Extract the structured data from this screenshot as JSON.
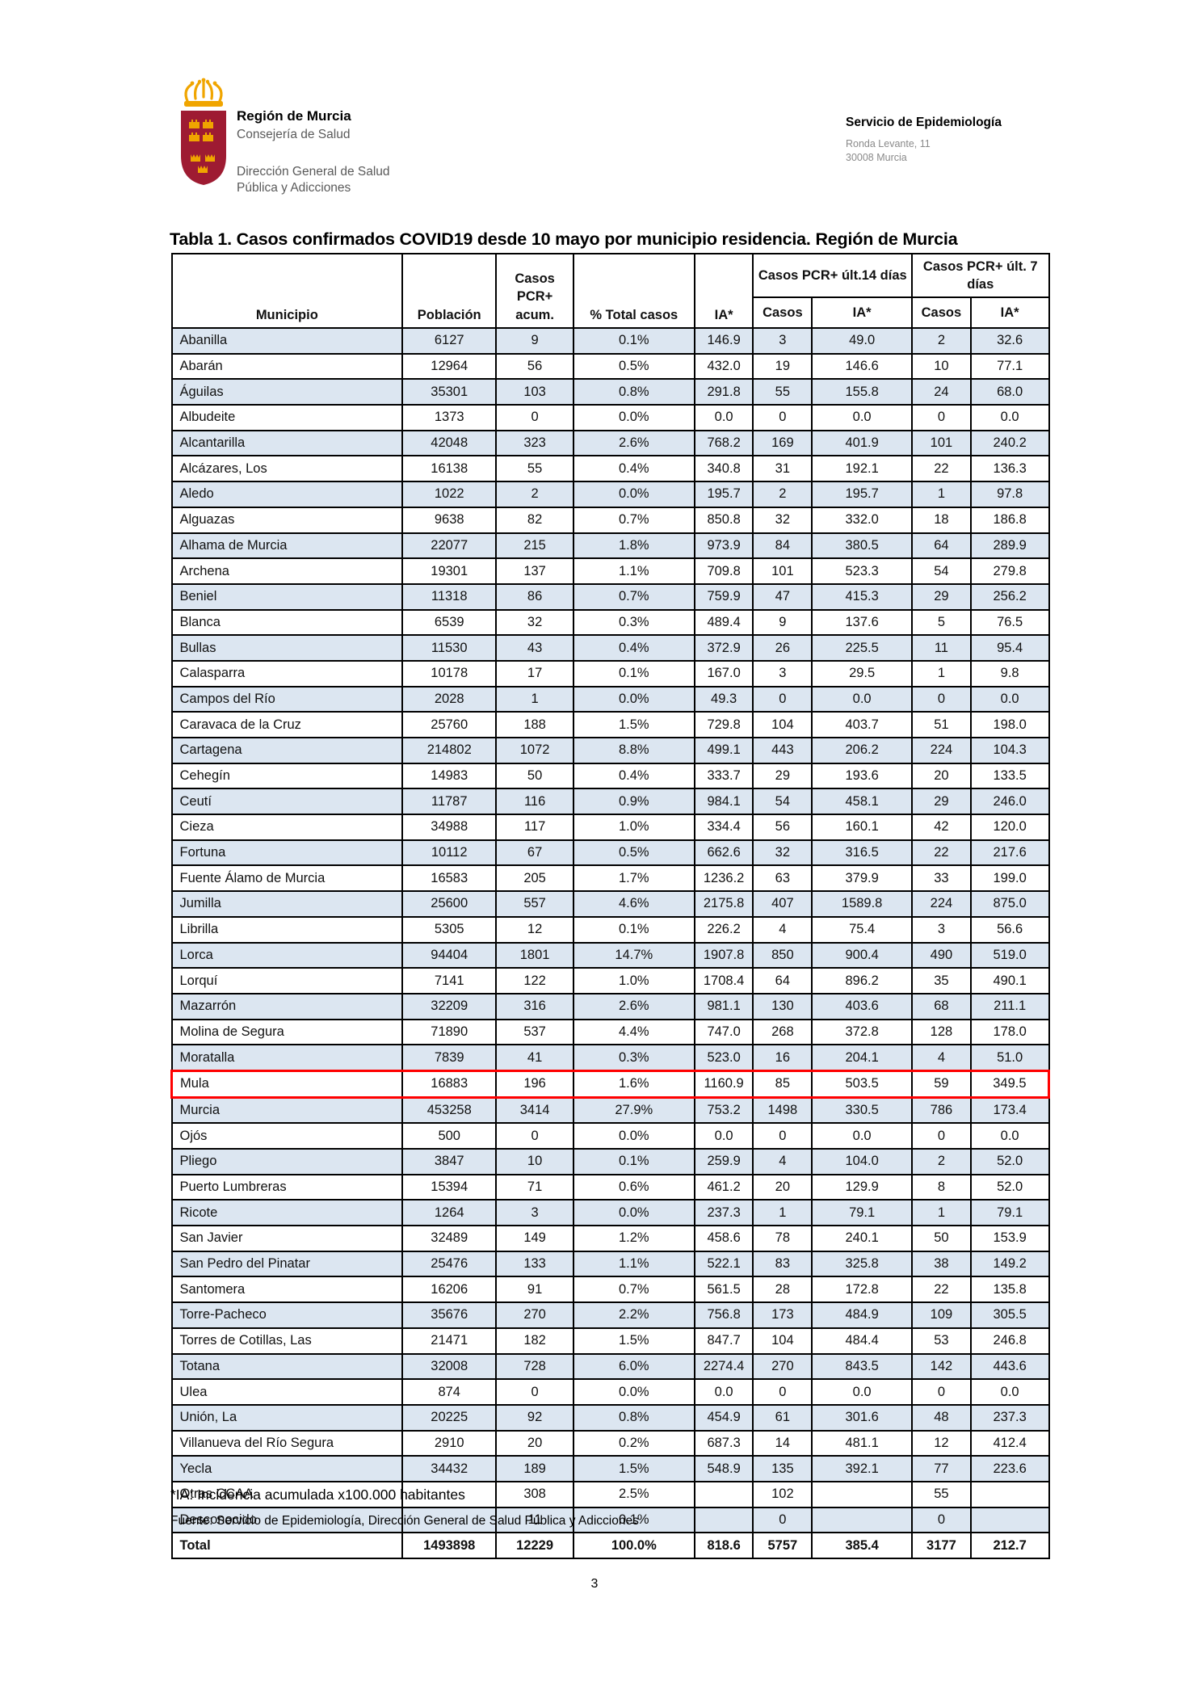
{
  "letterhead": {
    "logo_name": "region-de-murcia-coat-of-arms",
    "org_name": "Región de Murcia",
    "org_dept": "Consejería de Salud",
    "org_division_line1": "Dirección General de Salud",
    "org_division_line2": "Pública y Adicciones",
    "service": {
      "title": "Servicio de Epidemiología",
      "address_line1": "Ronda Levante, 11",
      "address_line2": "30008 Murcia"
    }
  },
  "table": {
    "title": "Tabla 1. Casos confirmados COVID19 desde 10 mayo por municipio residencia. Región de Murcia",
    "headers": {
      "municipio": "Municipio",
      "poblacion": "Población",
      "casos_pcr_acum": "Casos PCR+ acum.",
      "pct_total_casos": "% Total casos",
      "ia": "IA*",
      "group_ult14": "Casos PCR+ últ.14 días",
      "group_ult7": "Casos PCR+ últ. 7 días",
      "sub_casos_14": "Casos",
      "sub_ia_14": "IA*",
      "sub_casos_7": "Casos",
      "sub_ia_7": "IA*"
    },
    "stripe_color": "#DCE6F1",
    "highlight_border_color": "#FF0000",
    "highlighted_municipio": "Mula",
    "total_label": "Total",
    "rows": [
      [
        "Abanilla",
        "6127",
        "9",
        "0.1%",
        "146.9",
        "3",
        "49.0",
        "2",
        "32.6"
      ],
      [
        "Abarán",
        "12964",
        "56",
        "0.5%",
        "432.0",
        "19",
        "146.6",
        "10",
        "77.1"
      ],
      [
        "Águilas",
        "35301",
        "103",
        "0.8%",
        "291.8",
        "55",
        "155.8",
        "24",
        "68.0"
      ],
      [
        "Albudeite",
        "1373",
        "0",
        "0.0%",
        "0.0",
        "0",
        "0.0",
        "0",
        "0.0"
      ],
      [
        "Alcantarilla",
        "42048",
        "323",
        "2.6%",
        "768.2",
        "169",
        "401.9",
        "101",
        "240.2"
      ],
      [
        "Alcázares, Los",
        "16138",
        "55",
        "0.4%",
        "340.8",
        "31",
        "192.1",
        "22",
        "136.3"
      ],
      [
        "Aledo",
        "1022",
        "2",
        "0.0%",
        "195.7",
        "2",
        "195.7",
        "1",
        "97.8"
      ],
      [
        "Alguazas",
        "9638",
        "82",
        "0.7%",
        "850.8",
        "32",
        "332.0",
        "18",
        "186.8"
      ],
      [
        "Alhama de Murcia",
        "22077",
        "215",
        "1.8%",
        "973.9",
        "84",
        "380.5",
        "64",
        "289.9"
      ],
      [
        "Archena",
        "19301",
        "137",
        "1.1%",
        "709.8",
        "101",
        "523.3",
        "54",
        "279.8"
      ],
      [
        "Beniel",
        "11318",
        "86",
        "0.7%",
        "759.9",
        "47",
        "415.3",
        "29",
        "256.2"
      ],
      [
        "Blanca",
        "6539",
        "32",
        "0.3%",
        "489.4",
        "9",
        "137.6",
        "5",
        "76.5"
      ],
      [
        "Bullas",
        "11530",
        "43",
        "0.4%",
        "372.9",
        "26",
        "225.5",
        "11",
        "95.4"
      ],
      [
        "Calasparra",
        "10178",
        "17",
        "0.1%",
        "167.0",
        "3",
        "29.5",
        "1",
        "9.8"
      ],
      [
        "Campos del Río",
        "2028",
        "1",
        "0.0%",
        "49.3",
        "0",
        "0.0",
        "0",
        "0.0"
      ],
      [
        "Caravaca de la Cruz",
        "25760",
        "188",
        "1.5%",
        "729.8",
        "104",
        "403.7",
        "51",
        "198.0"
      ],
      [
        "Cartagena",
        "214802",
        "1072",
        "8.8%",
        "499.1",
        "443",
        "206.2",
        "224",
        "104.3"
      ],
      [
        "Cehegín",
        "14983",
        "50",
        "0.4%",
        "333.7",
        "29",
        "193.6",
        "20",
        "133.5"
      ],
      [
        "Ceutí",
        "11787",
        "116",
        "0.9%",
        "984.1",
        "54",
        "458.1",
        "29",
        "246.0"
      ],
      [
        "Cieza",
        "34988",
        "117",
        "1.0%",
        "334.4",
        "56",
        "160.1",
        "42",
        "120.0"
      ],
      [
        "Fortuna",
        "10112",
        "67",
        "0.5%",
        "662.6",
        "32",
        "316.5",
        "22",
        "217.6"
      ],
      [
        "Fuente Álamo de Murcia",
        "16583",
        "205",
        "1.7%",
        "1236.2",
        "63",
        "379.9",
        "33",
        "199.0"
      ],
      [
        "Jumilla",
        "25600",
        "557",
        "4.6%",
        "2175.8",
        "407",
        "1589.8",
        "224",
        "875.0"
      ],
      [
        "Librilla",
        "5305",
        "12",
        "0.1%",
        "226.2",
        "4",
        "75.4",
        "3",
        "56.6"
      ],
      [
        "Lorca",
        "94404",
        "1801",
        "14.7%",
        "1907.8",
        "850",
        "900.4",
        "490",
        "519.0"
      ],
      [
        "Lorquí",
        "7141",
        "122",
        "1.0%",
        "1708.4",
        "64",
        "896.2",
        "35",
        "490.1"
      ],
      [
        "Mazarrón",
        "32209",
        "316",
        "2.6%",
        "981.1",
        "130",
        "403.6",
        "68",
        "211.1"
      ],
      [
        "Molina de Segura",
        "71890",
        "537",
        "4.4%",
        "747.0",
        "268",
        "372.8",
        "128",
        "178.0"
      ],
      [
        "Moratalla",
        "7839",
        "41",
        "0.3%",
        "523.0",
        "16",
        "204.1",
        "4",
        "51.0"
      ],
      [
        "Mula",
        "16883",
        "196",
        "1.6%",
        "1160.9",
        "85",
        "503.5",
        "59",
        "349.5"
      ],
      [
        "Murcia",
        "453258",
        "3414",
        "27.9%",
        "753.2",
        "1498",
        "330.5",
        "786",
        "173.4"
      ],
      [
        "Ojós",
        "500",
        "0",
        "0.0%",
        "0.0",
        "0",
        "0.0",
        "0",
        "0.0"
      ],
      [
        "Pliego",
        "3847",
        "10",
        "0.1%",
        "259.9",
        "4",
        "104.0",
        "2",
        "52.0"
      ],
      [
        "Puerto Lumbreras",
        "15394",
        "71",
        "0.6%",
        "461.2",
        "20",
        "129.9",
        "8",
        "52.0"
      ],
      [
        "Ricote",
        "1264",
        "3",
        "0.0%",
        "237.3",
        "1",
        "79.1",
        "1",
        "79.1"
      ],
      [
        "San Javier",
        "32489",
        "149",
        "1.2%",
        "458.6",
        "78",
        "240.1",
        "50",
        "153.9"
      ],
      [
        "San Pedro del Pinatar",
        "25476",
        "133",
        "1.1%",
        "522.1",
        "83",
        "325.8",
        "38",
        "149.2"
      ],
      [
        "Santomera",
        "16206",
        "91",
        "0.7%",
        "561.5",
        "28",
        "172.8",
        "22",
        "135.8"
      ],
      [
        "Torre-Pacheco",
        "35676",
        "270",
        "2.2%",
        "756.8",
        "173",
        "484.9",
        "109",
        "305.5"
      ],
      [
        "Torres de Cotillas, Las",
        "21471",
        "182",
        "1.5%",
        "847.7",
        "104",
        "484.4",
        "53",
        "246.8"
      ],
      [
        "Totana",
        "32008",
        "728",
        "6.0%",
        "2274.4",
        "270",
        "843.5",
        "142",
        "443.6"
      ],
      [
        "Ulea",
        "874",
        "0",
        "0.0%",
        "0.0",
        "0",
        "0.0",
        "0",
        "0.0"
      ],
      [
        "Unión, La",
        "20225",
        "92",
        "0.8%",
        "454.9",
        "61",
        "301.6",
        "48",
        "237.3"
      ],
      [
        "Villanueva del Río Segura",
        "2910",
        "20",
        "0.2%",
        "687.3",
        "14",
        "481.1",
        "12",
        "412.4"
      ],
      [
        "Yecla",
        "34432",
        "189",
        "1.5%",
        "548.9",
        "135",
        "392.1",
        "77",
        "223.6"
      ],
      [
        "Otras CCAA",
        "",
        "308",
        "2.5%",
        "",
        "102",
        "",
        "55",
        ""
      ],
      [
        "Desconocido",
        "",
        "11",
        "0.1%",
        "",
        "0",
        "",
        "0",
        ""
      ],
      [
        "Total",
        "1493898",
        "12229",
        "100.0%",
        "818.6",
        "5757",
        "385.4",
        "3177",
        "212.7"
      ]
    ]
  },
  "footnotes": {
    "ia_note": "*IA: Incidencia acumulada x100.000 habitantes",
    "source": "Fuente: Servicio de Epidemiología, Dirección General de Salud Pública y Adicciones"
  },
  "page_number": "3"
}
